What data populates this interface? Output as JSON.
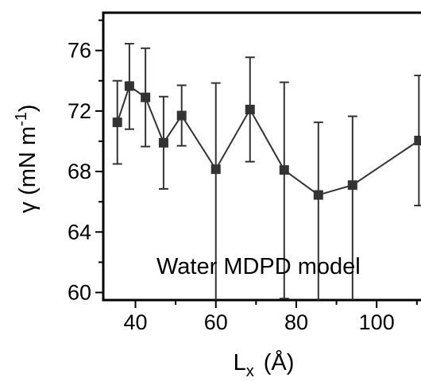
{
  "chart_data": {
    "type": "line",
    "title": "",
    "annotation": "Water MDPD model",
    "xlabel": {
      "main": "L",
      "sub": "x",
      "unit": "(Å)"
    },
    "ylabel": {
      "main": "γ (mN m",
      "sup": "-1",
      "close": ")"
    },
    "xlim": [
      32,
      113
    ],
    "ylim": [
      59.5,
      78.5
    ],
    "xticks": [
      40,
      60,
      80,
      100
    ],
    "yticks": [
      60,
      64,
      68,
      72,
      76
    ],
    "xtick_labels": [
      "40",
      "60",
      "80",
      "100"
    ],
    "ytick_labels": [
      "60",
      "64",
      "68",
      "72",
      "76"
    ],
    "grid": false,
    "marker": "square",
    "line_color": "#333333",
    "series": [
      {
        "x": [
          35.5,
          38.5,
          42.5,
          47,
          51.5,
          60,
          68.5,
          77,
          85.5,
          94,
          110.5
        ],
        "y": [
          71.25,
          73.65,
          72.9,
          69.9,
          71.7,
          68.15,
          72.1,
          68.1,
          66.45,
          67.1,
          70.05
        ],
        "err_low": [
          2.75,
          2.85,
          3.25,
          3.05,
          2.0,
          9.0,
          3.45,
          8.5,
          7.0,
          8.5,
          4.3
        ],
        "err_high": [
          2.75,
          2.8,
          3.25,
          3.05,
          2.0,
          5.7,
          3.45,
          5.8,
          4.8,
          4.55,
          4.3
        ]
      }
    ]
  }
}
